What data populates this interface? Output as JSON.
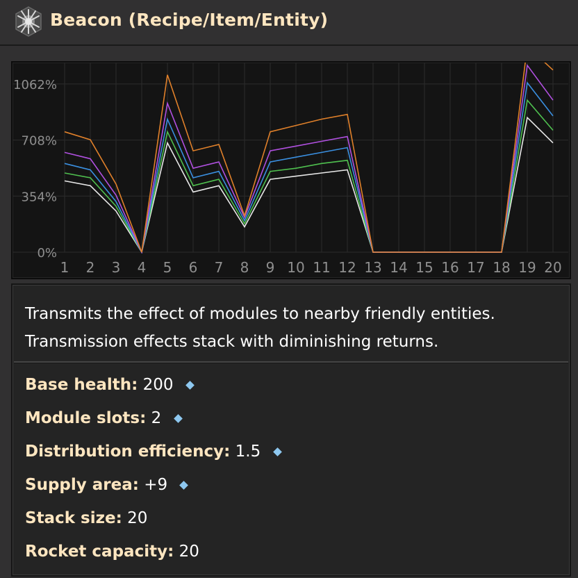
{
  "window": {
    "title": "Beacon (Recipe/Item/Entity)",
    "title_icon": "beacon-icon"
  },
  "description": [
    "Transmits the effect of modules to nearby friendly entities.",
    "Transmission effects stack with diminishing returns."
  ],
  "properties": [
    {
      "label": "Base health:",
      "value": "200",
      "quality_marker": true
    },
    {
      "label": "Module slots:",
      "value": "2",
      "quality_marker": true
    },
    {
      "label": "Distribution efficiency:",
      "value": "1.5",
      "quality_marker": true
    },
    {
      "label": "Supply area:",
      "value": "+9",
      "quality_marker": true
    },
    {
      "label": "Stack size:",
      "value": "20",
      "quality_marker": false
    },
    {
      "label": "Rocket capacity:",
      "value": "20",
      "quality_marker": false
    }
  ],
  "colors": {
    "title": "#ffe6c0",
    "label": "#ffe6c0",
    "value": "#ffffff",
    "quality_marker": "#8ec8f0"
  },
  "chart_data": {
    "type": "line",
    "x": [
      1,
      2,
      3,
      4,
      5,
      6,
      7,
      8,
      9,
      10,
      11,
      12,
      13,
      14,
      15,
      16,
      17,
      18,
      19,
      20
    ],
    "x_tick_labels": [
      "1",
      "2",
      "3",
      "4",
      "5",
      "6",
      "7",
      "8",
      "9",
      "10",
      "11",
      "12",
      "13",
      "14",
      "15",
      "16",
      "17",
      "18",
      "19",
      "20"
    ],
    "y_tick_labels": [
      "0%",
      "354%",
      "708%",
      "1062%"
    ],
    "y_ticks": [
      0,
      354,
      708,
      1062
    ],
    "ylim": [
      0,
      1180
    ],
    "grid": true,
    "series": [
      {
        "color": "#e8e8e8",
        "values": [
          450,
          420,
          260,
          0,
          690,
          380,
          420,
          160,
          460,
          480,
          500,
          520,
          0,
          0,
          0,
          0,
          0,
          0,
          850,
          690
        ]
      },
      {
        "color": "#4fc04f",
        "values": [
          500,
          470,
          290,
          0,
          760,
          420,
          460,
          180,
          510,
          530,
          560,
          580,
          0,
          0,
          0,
          0,
          0,
          0,
          960,
          770
        ]
      },
      {
        "color": "#3a8fe0",
        "values": [
          560,
          520,
          320,
          0,
          840,
          470,
          510,
          200,
          570,
          600,
          630,
          660,
          0,
          0,
          0,
          0,
          0,
          0,
          1070,
          860
        ]
      },
      {
        "color": "#b050e0",
        "values": [
          630,
          590,
          360,
          0,
          940,
          530,
          570,
          220,
          640,
          670,
          700,
          730,
          0,
          0,
          0,
          0,
          0,
          0,
          1180,
          960
        ]
      },
      {
        "color": "#e0802a",
        "values": [
          760,
          710,
          430,
          0,
          1120,
          640,
          680,
          230,
          760,
          800,
          840,
          870,
          0,
          0,
          0,
          0,
          0,
          0,
          1300,
          1150
        ]
      }
    ]
  }
}
